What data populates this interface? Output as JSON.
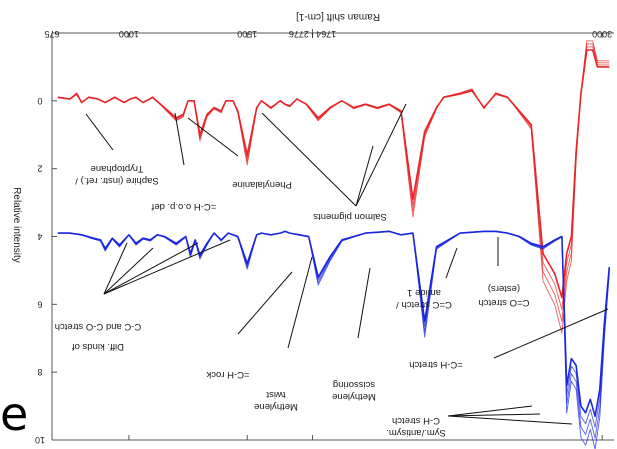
{
  "chart_data": {
    "type": "line",
    "title": "",
    "xlabel": "Raman shift [cm-1]",
    "ylabel": "Relative intensity",
    "xlim": [
      675,
      3050
    ],
    "ylim": [
      10,
      -2
    ],
    "x_ticks": [
      {
        "value": 675,
        "label": "675"
      },
      {
        "value": 1000,
        "label": "1000"
      },
      {
        "value": 1500,
        "label": "1500"
      },
      {
        "value": 1776,
        "label": "1764 | 2776"
      },
      {
        "value": 3000,
        "label": "3000"
      }
    ],
    "y_ticks": [
      {
        "value": 0,
        "label": "0"
      },
      {
        "value": 2,
        "label": "2"
      },
      {
        "value": 4,
        "label": "4"
      },
      {
        "value": 6,
        "label": "6"
      },
      {
        "value": 8,
        "label": "8"
      },
      {
        "value": 10,
        "label": "10"
      }
    ],
    "series": [
      {
        "color": "#e8262a",
        "x": [
          700,
          750,
          780,
          800,
          830,
          870,
          900,
          940,
          980,
          1005,
          1030,
          1060,
          1100,
          1150,
          1200,
          1230,
          1250,
          1275,
          1300,
          1330,
          1360,
          1390,
          1410,
          1440,
          1460,
          1500,
          1540,
          1560,
          1600,
          1640,
          1660,
          1680,
          1710,
          1750,
          1800,
          1850,
          1900,
          1950,
          2000,
          2050,
          2100,
          2150,
          2200,
          2250,
          2300,
          2330,
          2400,
          2450,
          2500,
          2550,
          2600,
          2700,
          2750,
          2800,
          2830,
          2850,
          2870,
          2890,
          2910,
          2935,
          2960,
          2980,
          3000,
          3030
        ],
        "y": [
          -0.1,
          -0.05,
          -0.2,
          0.05,
          -0.1,
          -0.05,
          0.05,
          -0.1,
          0.05,
          -0.05,
          -0.1,
          0.05,
          -0.1,
          0.2,
          0.5,
          0.4,
          0.0,
          0.0,
          1.0,
          0.4,
          0.2,
          0.3,
          0.0,
          0.0,
          0.3,
          1.6,
          0.2,
          0.0,
          0.2,
          0.0,
          0.1,
          0.15,
          -0.05,
          0.1,
          0.5,
          0.2,
          0.0,
          0.2,
          0.1,
          0.2,
          0.1,
          0.3,
          2.9,
          0.9,
          0.2,
          -0.1,
          -0.2,
          -0.3,
          0.2,
          -0.2,
          -0.1,
          0.7,
          4.5,
          5.1,
          5.8,
          4.5,
          4.0,
          1.5,
          -0.2,
          -1.5,
          -1.5,
          -1.0,
          -1.0,
          -1.0
        ]
      },
      {
        "color": "#1b27e0",
        "x": [
          700,
          750,
          800,
          850,
          880,
          900,
          930,
          960,
          1000,
          1030,
          1060,
          1090,
          1120,
          1150,
          1200,
          1240,
          1260,
          1280,
          1300,
          1330,
          1360,
          1390,
          1420,
          1440,
          1460,
          1500,
          1540,
          1560,
          1600,
          1640,
          1660,
          1680,
          1720,
          1760,
          1800,
          1850,
          1900,
          2000,
          2100,
          2150,
          2200,
          2250,
          2300,
          2400,
          2500,
          2550,
          2600,
          2650,
          2700,
          2750,
          2800,
          2830,
          2850,
          2870,
          2890,
          2910,
          2930,
          2950,
          2970,
          2990,
          3010,
          3030
        ],
        "y": [
          3.9,
          3.9,
          3.95,
          4.05,
          4.1,
          4.35,
          4.05,
          4.25,
          3.95,
          4.2,
          4.05,
          4.1,
          3.95,
          4.0,
          4.2,
          4.0,
          4.5,
          4.1,
          4.55,
          4.2,
          3.9,
          4.1,
          3.9,
          3.95,
          4.0,
          4.8,
          3.95,
          3.9,
          3.95,
          3.9,
          3.85,
          3.9,
          3.95,
          4.0,
          5.2,
          4.6,
          4.1,
          3.9,
          3.85,
          3.95,
          3.9,
          6.5,
          4.3,
          3.9,
          3.85,
          3.85,
          3.9,
          4.0,
          4.2,
          4.3,
          4.1,
          4.0,
          8.4,
          7.6,
          7.8,
          9.0,
          9.2,
          8.8,
          9.3,
          8.5,
          6.5,
          4.9
        ]
      }
    ],
    "annotations": [
      "Tryptophane",
      "Saphire (instr. ref.) /",
      "=C-H o.o.p. def",
      "Phenylalanine",
      "Salmon pigments",
      "Diff. kinds of",
      "C-C and C-O stretch",
      "=C-H rock",
      "Methylene",
      "twist",
      "Methylene",
      "scissoring",
      "amide 1",
      "C=C stretch /",
      "(esters)",
      "C=O stretch",
      "=C-H stretch",
      "Sym./antisym.",
      "C-H stretch"
    ],
    "overlay_text": "e"
  }
}
